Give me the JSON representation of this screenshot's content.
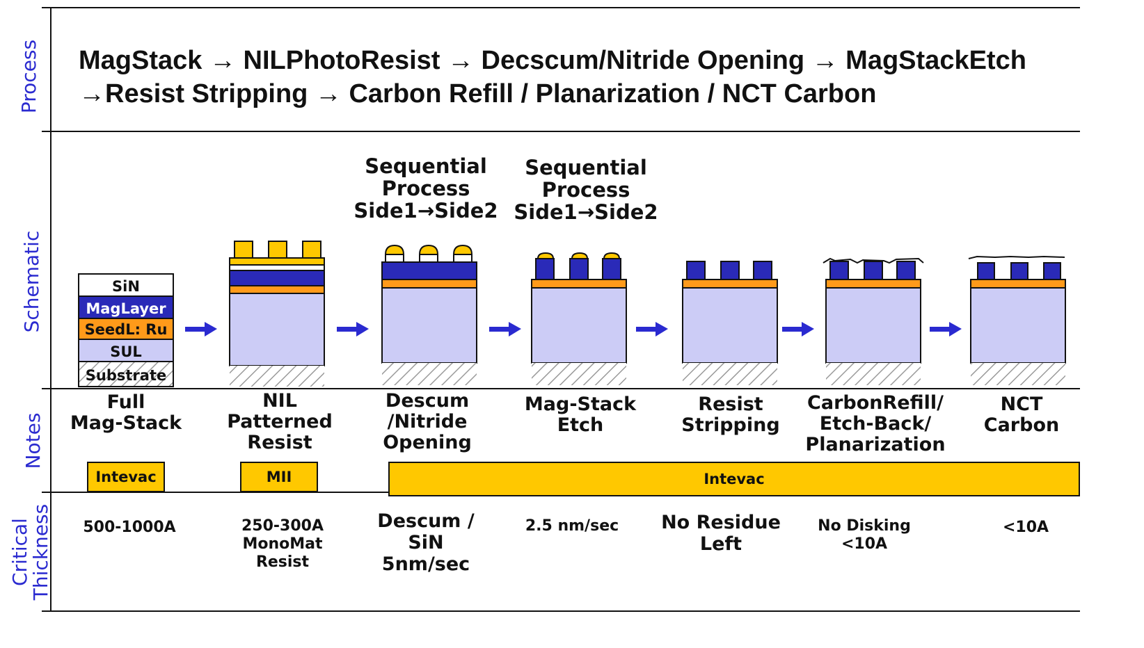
{
  "rows": {
    "process": "Process",
    "schematic": "Schematic",
    "notes": "Notes",
    "critical": "Critical\nThickness"
  },
  "process_flow": {
    "line1": "MagStack → NILPhotoResist → Decscum/Nitride Opening → MagStackEtch",
    "line2": "→Resist Stripping → Carbon Refill / Planarization / NCT Carbon"
  },
  "sequential_labels": [
    "Sequential\nProcess\nSide1→Side2",
    "Sequential\nProcess\nSide1→Side2"
  ],
  "layers": {
    "sin": "SiN",
    "mag": "MagLayer",
    "seed": "SeedL: Ru",
    "sul": "SUL",
    "substrate": "Substrate"
  },
  "steps": [
    {
      "note": "Full\nMag-Stack",
      "critical": "500-1000A"
    },
    {
      "note": "NIL\nPatterned\nResist",
      "critical": "250-300A\nMonoMat\nResist"
    },
    {
      "note": "Descum\n/Nitride\nOpening",
      "critical": "Descum /\nSiN\n5nm/sec"
    },
    {
      "note": "Mag-Stack\nEtch",
      "critical": "2.5 nm/sec"
    },
    {
      "note": "Resist\nStripping",
      "critical": "No Residue\nLeft"
    },
    {
      "note": "CarbonRefill/\nEtch-Back/\nPlanarization",
      "critical": "No Disking\n<10A"
    },
    {
      "note": "NCT\nCarbon",
      "critical": "<10A"
    }
  ],
  "tools": [
    {
      "label": "Intevac"
    },
    {
      "label": "MII"
    },
    {
      "label": "Intevac"
    }
  ],
  "colors": {
    "mag": "#2a2ab8",
    "seed": "#ff9a1a",
    "sul": "#ccccf6",
    "resist": "#ffc800",
    "arrow": "#2a2ad0",
    "label": "#2b2bd0"
  }
}
